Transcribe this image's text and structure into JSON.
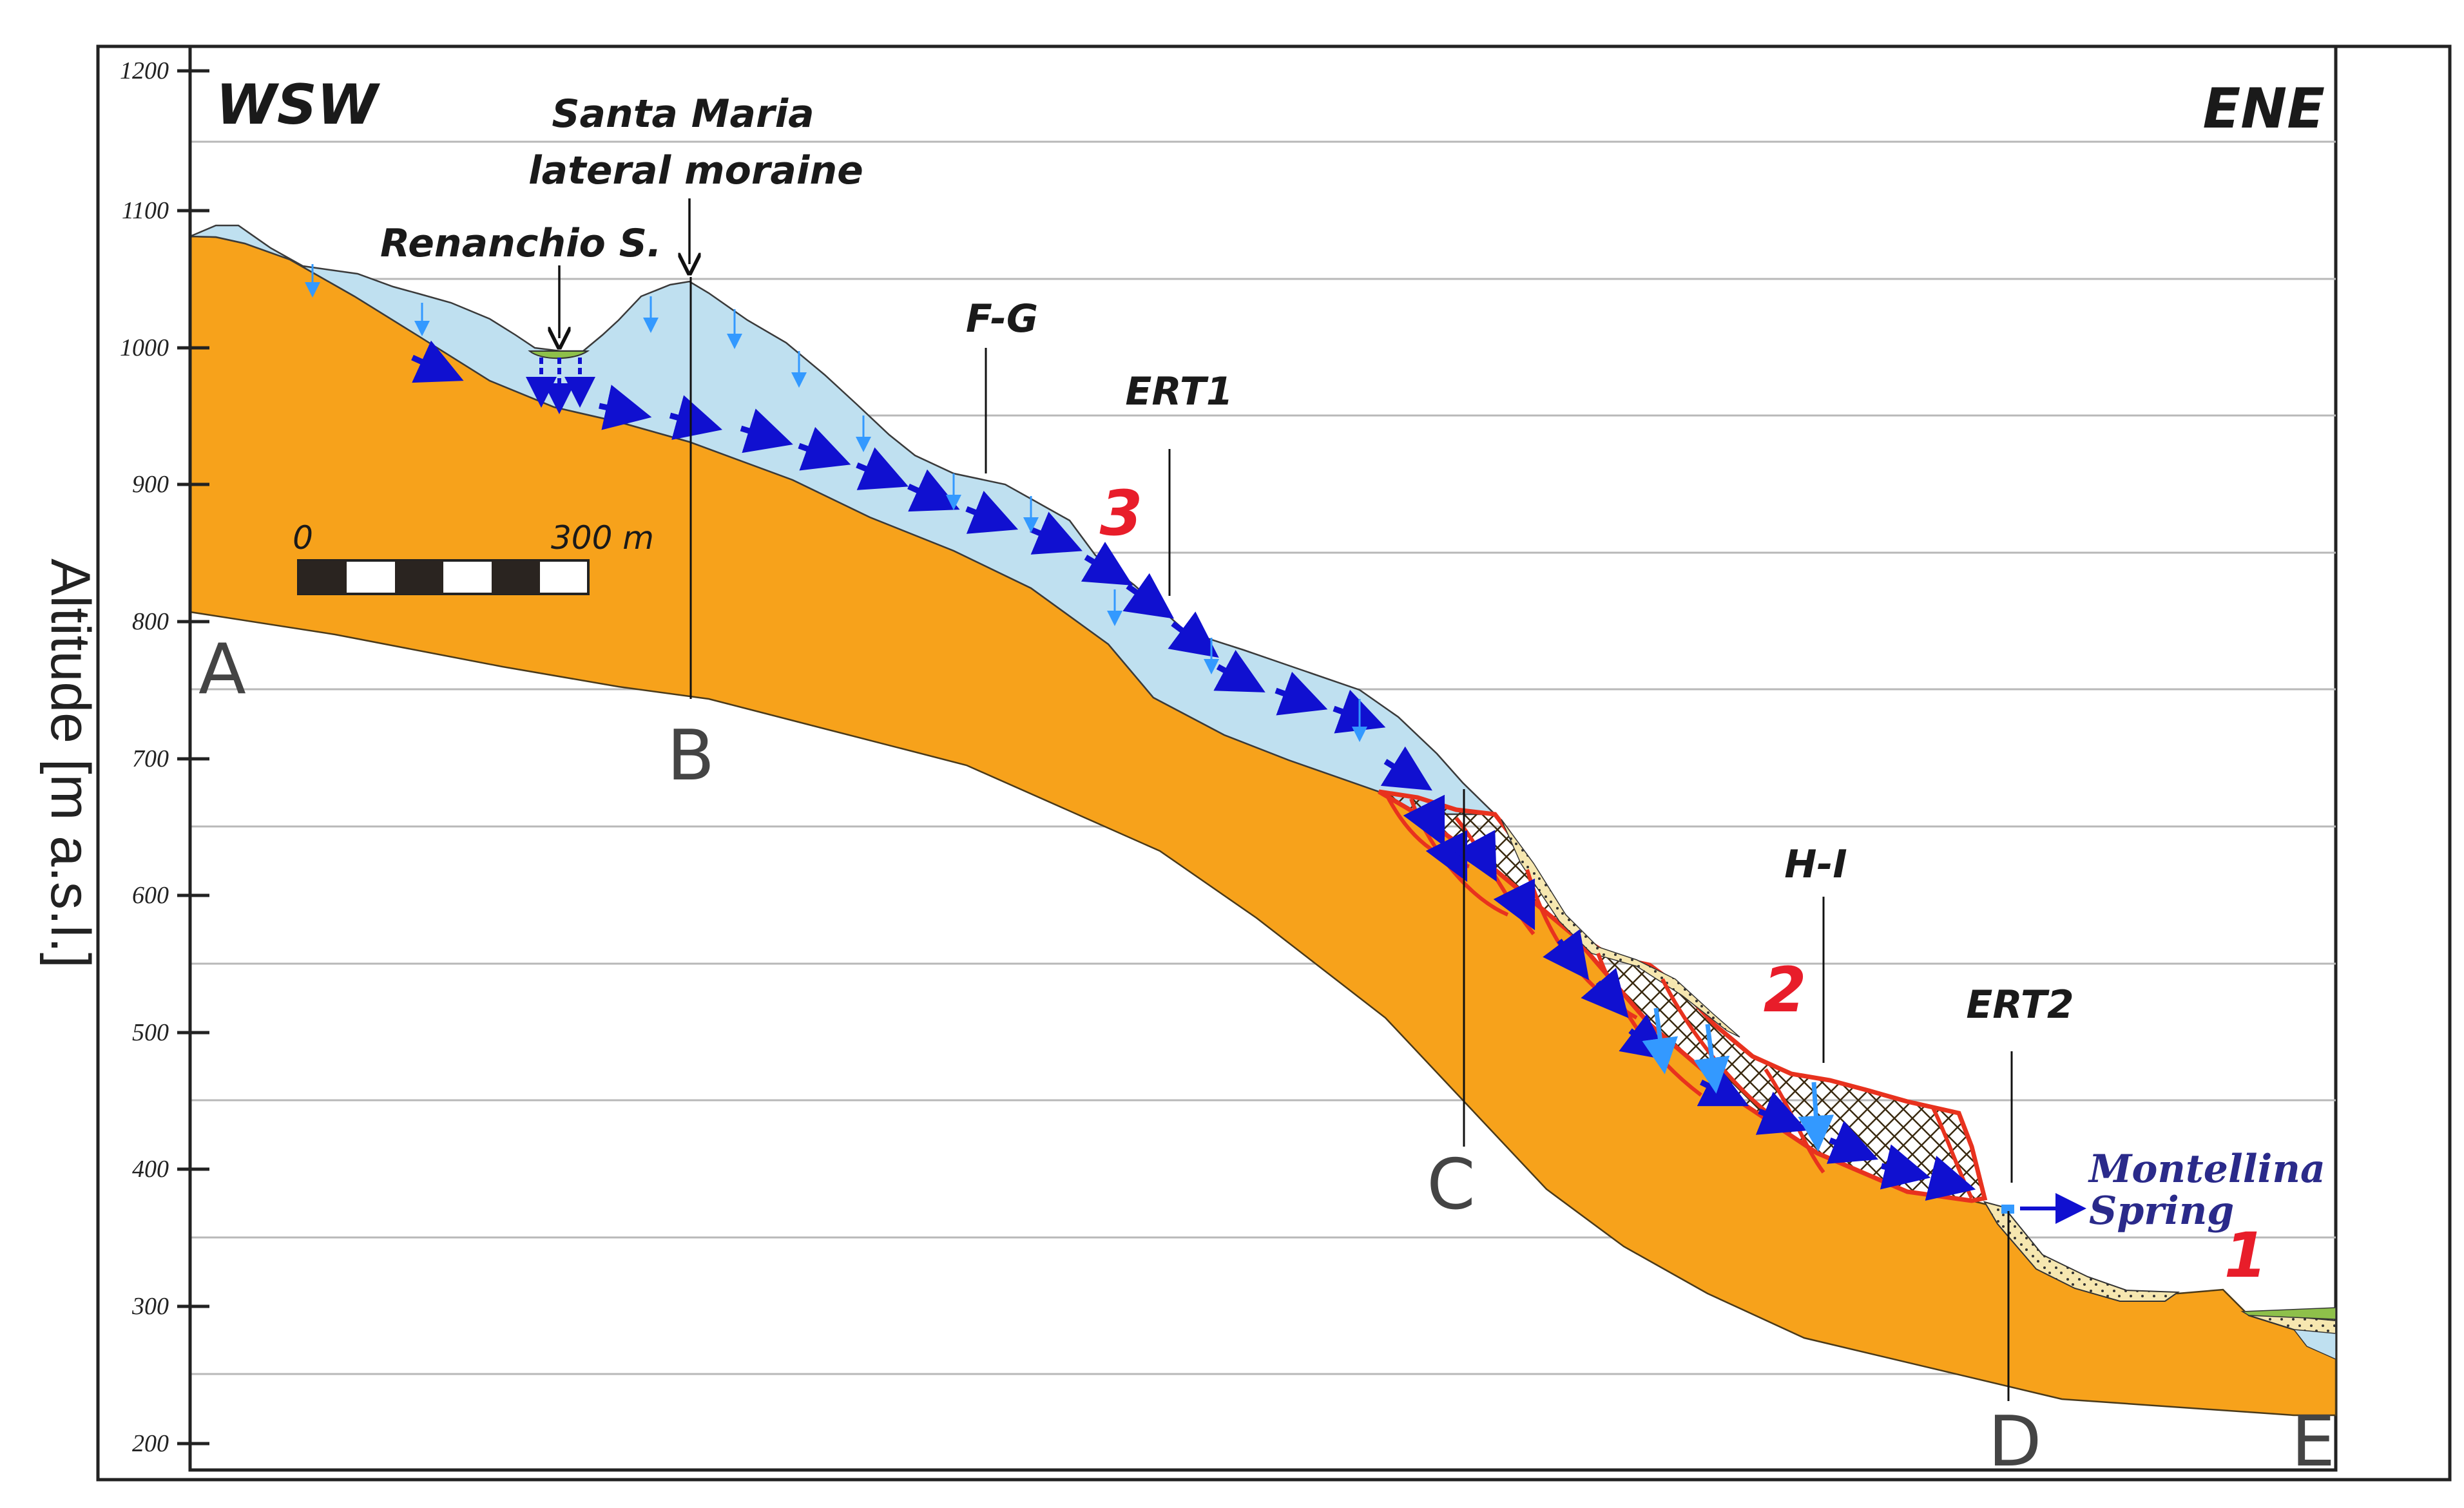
{
  "axis": {
    "label": "Altitude [m a.s.l.]",
    "ticks": [
      "1200",
      "1100",
      "1000",
      "900",
      "800",
      "700",
      "600",
      "500",
      "400",
      "300",
      "200"
    ]
  },
  "directions": {
    "west": "WSW",
    "east": "ENE"
  },
  "sites": {
    "moraine_line1": "Santa Maria",
    "moraine_line2": "lateral moraine",
    "renanchio": "Renanchio S.",
    "spring_line1": "Montellina",
    "spring_line2": "Spring"
  },
  "profiles": {
    "fg": "F-G",
    "ert1": "ERT1",
    "hi": "H-I",
    "ert2": "ERT2"
  },
  "points": {
    "a": "A",
    "b": "B",
    "c": "C",
    "d": "D",
    "e": "E"
  },
  "zones": {
    "z1": "1",
    "z2": "2",
    "z3": "3"
  },
  "scale_bar": {
    "start": "0",
    "end": "300 m"
  },
  "colors": {
    "bedrock": "#F7A21B",
    "glacial_deposit": "#BFE0F0",
    "landslide_outline": "#E8321E",
    "flow_arrow": "#1010D0",
    "infiltration_arrow": "#3399FF",
    "spring": "#2a2a8a",
    "zone_number": "#e81d2a"
  }
}
